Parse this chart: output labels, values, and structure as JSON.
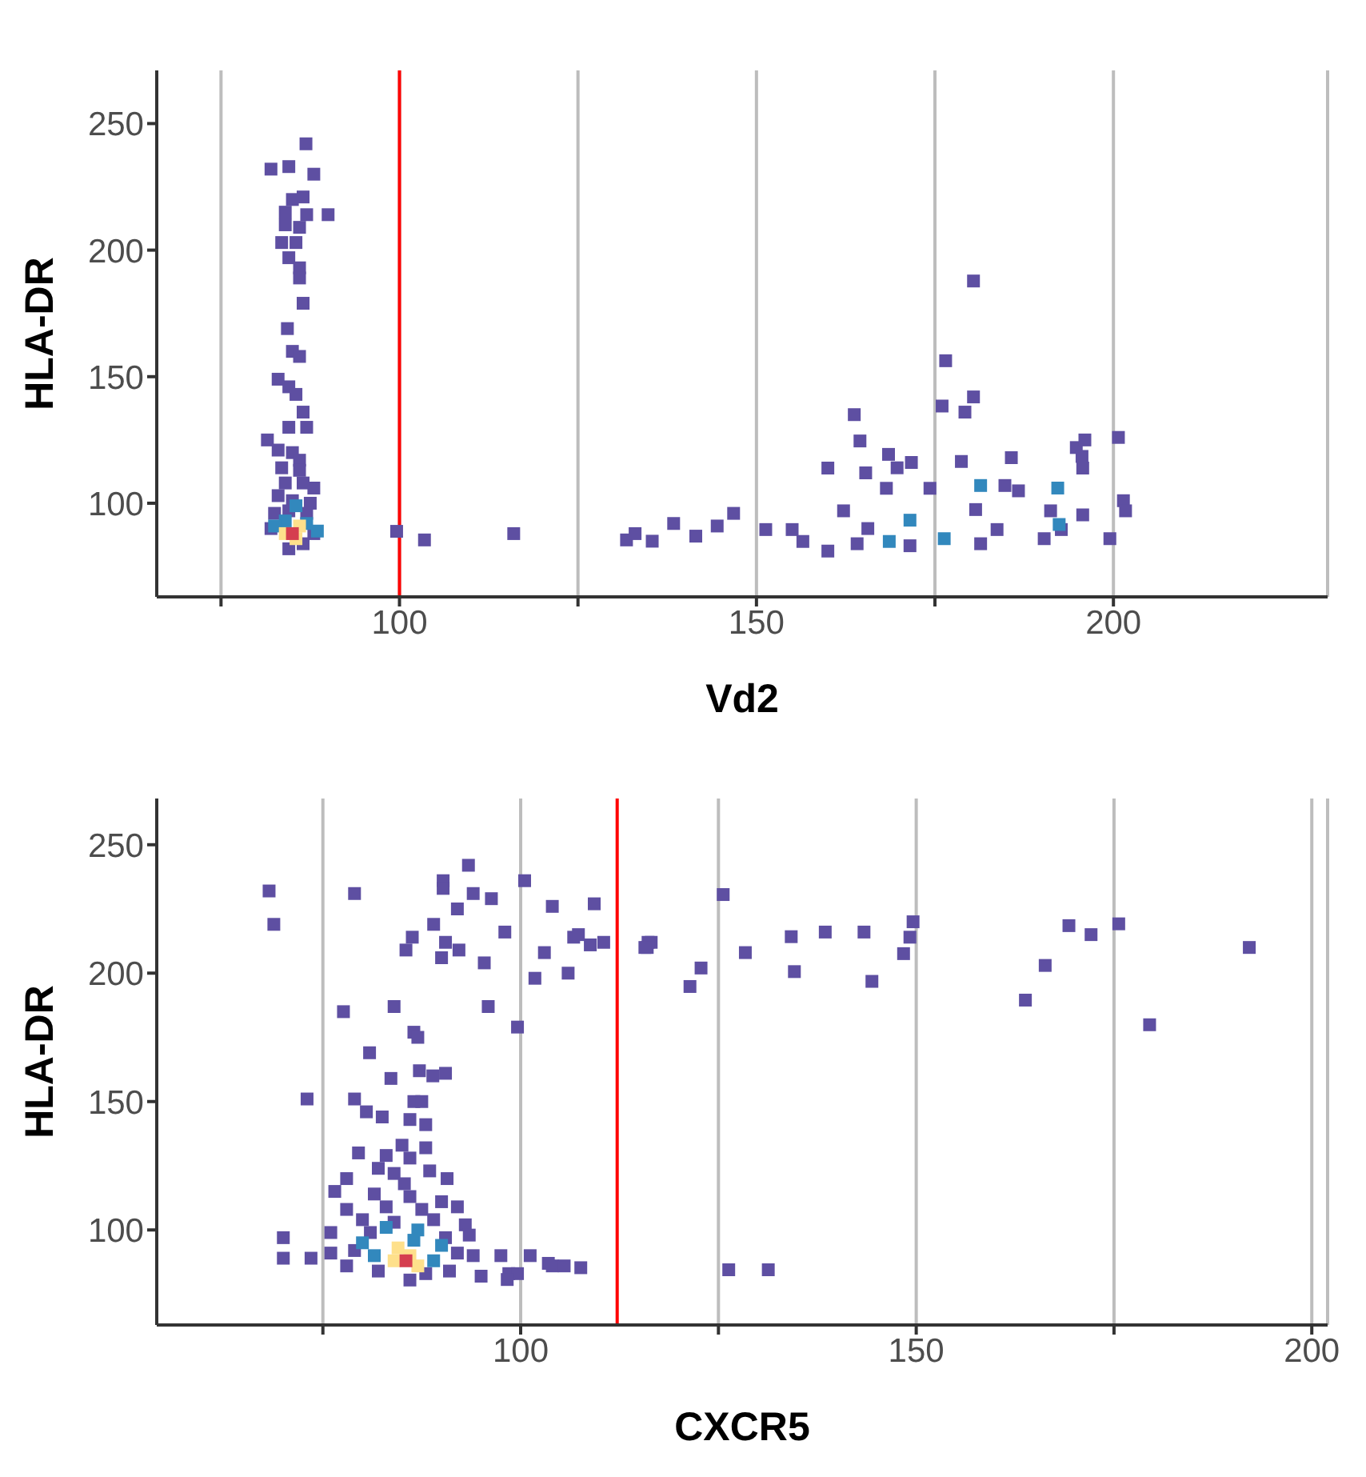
{
  "chart_data": [
    {
      "type": "scatter",
      "xlabel": "Vd2",
      "ylabel": "HLA-DR",
      "xlim": [
        66,
        230
      ],
      "ylim": [
        63,
        271
      ],
      "xticks": [
        {
          "value": 75,
          "label": null
        },
        100,
        {
          "value": 125,
          "label": null
        },
        150,
        {
          "value": 175,
          "label": null
        },
        200
      ],
      "yticks": [
        100,
        150,
        200,
        250
      ],
      "grid": "x",
      "marker": "square",
      "ref_lines": [
        {
          "axis": "x",
          "value": 100,
          "color": "#ff0000"
        }
      ],
      "series": [
        {
          "color": "#5e4fa2",
          "x": [
            86.9,
            84.5,
            82,
            88,
            85,
            86.5,
            84,
            87,
            90,
            84,
            86,
            83.5,
            85.5,
            84.5,
            86,
            86,
            86.5,
            84.3,
            85,
            86,
            83,
            84.5,
            85.5,
            86.5,
            84.5,
            87,
            81.5,
            83,
            85,
            86,
            83.5,
            86,
            84,
            86.5,
            88,
            83,
            85,
            87.5,
            82.5,
            84.5,
            87,
            82,
            88,
            84.5,
            86.5,
            99.6,
            103.5,
            116,
            131.8,
            133,
            135.4,
            138.4,
            141.5,
            144.5,
            146.8,
            151.3,
            155,
            160,
            162.2,
            165.6,
            174.3,
            180.7,
            183.7,
            186.7,
            191.2,
            192.7,
            195.7,
            199.5,
            201.4,
            190.3,
            164.1,
            181.4,
            171.5,
            156.5,
            168.2,
            178.7,
            184.8,
            180.4,
            176.5,
            180.4,
            176,
            179.2,
            163.7,
            164.5,
            194.8,
            196,
            200.7,
            195.6,
            160,
            169.7,
            165.3,
            168.5,
            171.7,
            195.7,
            201.7,
            185.7
          ],
          "values": [
            242,
            233,
            232,
            230,
            220,
            221,
            215,
            214,
            214,
            210,
            209,
            203,
            203,
            197,
            193,
            189,
            179,
            169,
            160,
            158,
            149,
            146,
            143,
            136,
            130,
            130,
            125,
            121,
            120,
            117,
            114,
            113,
            108,
            108,
            106,
            103,
            101,
            100,
            96,
            97,
            96,
            90,
            88,
            82,
            84,
            88.9,
            85.5,
            88,
            85.5,
            88,
            85,
            92,
            87,
            91,
            96,
            89.6,
            89.6,
            81.1,
            97,
            90,
            105.9,
            97.5,
            89.6,
            104.9,
            97,
            89.6,
            95.4,
            86,
            101,
            86,
            84,
            84,
            83.2,
            84.9,
            105.9,
            116.5,
            107,
            187.8,
            156.3,
            142,
            138.4,
            136,
            135,
            124.6,
            122,
            125,
            126,
            118.5,
            113.9,
            114,
            112,
            119.3,
            116.1,
            113.9,
            97,
            118
          ]
        },
        {
          "color": "#3288bd",
          "x": [
            85.5,
            84,
            87,
            88.5,
            82.5,
            168.6,
            171.5,
            176.3,
            192.2,
            181.4,
            192.4
          ],
          "values": [
            99,
            93,
            92,
            89,
            91,
            84.9,
            93.3,
            86,
            106,
            107,
            91.6
          ]
        },
        {
          "color": "#fee08b",
          "x": [
            86,
            85.5,
            84
          ],
          "values": [
            91,
            86,
            88
          ]
        },
        {
          "color": "#d53e4f",
          "x": [
            85
          ],
          "values": [
            88
          ]
        }
      ]
    },
    {
      "type": "scatter",
      "xlabel": "CXCR5",
      "ylabel": "HLA-DR",
      "xlim": [
        54,
        202
      ],
      "ylim": [
        63,
        268
      ],
      "xticks": [
        {
          "value": 75,
          "label": null
        },
        100,
        {
          "value": 125,
          "label": null
        },
        150,
        {
          "value": 175,
          "label": null
        },
        200
      ],
      "yticks": [
        100,
        150,
        200,
        250
      ],
      "grid": "x",
      "marker": "square",
      "ref_lines": [
        {
          "axis": "x",
          "value": 112.2,
          "color": "#ff0000"
        }
      ],
      "series": [
        {
          "color": "#5e4fa2",
          "x": [
            68.2,
            68.8,
            79,
            93.4,
            90.2,
            90.2,
            94,
            100.5,
            104,
            96.3,
            92,
            89,
            90.5,
            86.3,
            85.5,
            92.2,
            90,
            95.4,
            98,
            103,
            106.7,
            107.3,
            106,
            101.8,
            110.5,
            116.5,
            116,
            122.8,
            84,
            77.6,
            95.9,
            99.6,
            86.5,
            87,
            80.9,
            87.2,
            88.9,
            83.6,
            90.5,
            73,
            79,
            80.5,
            86.5,
            87.5,
            86,
            88,
            82.5,
            85,
            88,
            79.5,
            83,
            86,
            82,
            84,
            88.5,
            78,
            85.3,
            90.7,
            76.5,
            81.5,
            86,
            90,
            78,
            83,
            87.5,
            92,
            80,
            84,
            89,
            93,
            76,
            81,
            90.5,
            93.5,
            70,
            73.5,
            76,
            79,
            92,
            94,
            70,
            78,
            82,
            88,
            91,
            86,
            97.5,
            98.5,
            103.5,
            104,
            95,
            99.6,
            109.3,
            108.8,
            116.1,
            115.7,
            121.4,
            125.6,
            128.4,
            134.2,
            138.5,
            143.4,
            134.6,
            144.4,
            149.6,
            149.2,
            148.4,
            163.8,
            166.3,
            169.3,
            172.1,
            175.6,
            179.5,
            192.1,
            126.3,
            131.3,
            107.6,
            105.5,
            101.2,
            98.3
          ],
          "values": [
            232,
            219,
            231,
            242,
            236,
            233,
            231,
            236,
            226,
            229,
            225,
            219,
            212,
            214,
            209,
            209,
            206,
            204,
            216,
            208,
            214,
            215,
            200,
            198,
            212,
            212,
            210,
            202,
            187,
            185,
            187,
            179,
            177,
            175,
            169,
            162,
            160,
            159,
            161,
            151,
            151,
            146,
            150,
            150,
            143,
            141,
            144,
            133,
            132,
            130,
            129,
            128,
            124,
            122,
            123,
            120,
            118,
            120,
            115,
            114,
            113,
            111,
            108,
            109,
            108,
            109,
            104,
            103,
            104,
            102,
            99,
            99,
            97,
            98,
            97,
            89,
            91,
            92,
            91,
            90,
            89,
            86,
            84,
            83,
            84,
            80.5,
            90,
            83,
            87,
            86,
            82,
            83,
            227,
            211,
            212,
            210,
            194.8,
            230.6,
            208,
            214.2,
            216,
            216,
            200.6,
            196.8,
            220,
            214,
            207.6,
            189.5,
            203,
            218.5,
            215,
            219.2,
            179.9,
            210,
            84.5,
            84.5,
            85.3,
            86,
            90,
            80.7
          ]
        },
        {
          "color": "#3288bd",
          "x": [
            83,
            87,
            80,
            86.5,
            90,
            81.5,
            89
          ],
          "values": [
            101,
            100,
            95,
            96,
            94,
            90,
            88
          ]
        },
        {
          "color": "#fee08b",
          "x": [
            84.5,
            86,
            84,
            87
          ],
          "values": [
            93,
            90,
            88,
            86
          ]
        },
        {
          "color": "#d53e4f",
          "x": [
            85.5
          ],
          "values": [
            88
          ]
        }
      ]
    }
  ]
}
